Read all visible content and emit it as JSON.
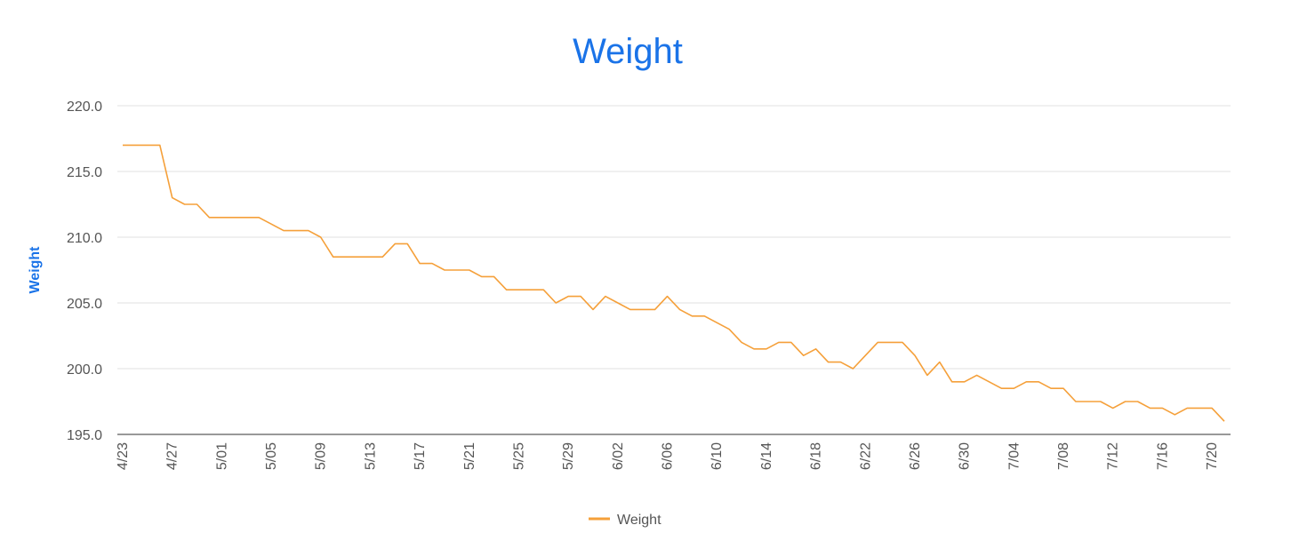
{
  "chart_data": {
    "type": "line",
    "title": "Weight",
    "ylabel": "Weight",
    "xlabel": "",
    "ylim": [
      195,
      220
    ],
    "yticks": [
      "195.0",
      "200.0",
      "205.0",
      "210.0",
      "215.0",
      "220.0"
    ],
    "xticks": [
      "4/23",
      "4/27",
      "5/01",
      "5/05",
      "5/09",
      "5/13",
      "5/17",
      "5/21",
      "5/25",
      "5/29",
      "6/02",
      "6/06",
      "6/10",
      "6/14",
      "6/18",
      "6/22",
      "6/26",
      "6/30",
      "7/04",
      "7/08",
      "7/12",
      "7/16",
      "7/20"
    ],
    "grid": true,
    "legend_position": "bottom",
    "color": "#f5a03a",
    "x": [
      "4/23",
      "4/24",
      "4/25",
      "4/26",
      "4/27",
      "4/28",
      "4/29",
      "4/30",
      "5/01",
      "5/02",
      "5/03",
      "5/04",
      "5/05",
      "5/06",
      "5/07",
      "5/08",
      "5/09",
      "5/10",
      "5/11",
      "5/12",
      "5/13",
      "5/14",
      "5/15",
      "5/16",
      "5/17",
      "5/18",
      "5/19",
      "5/20",
      "5/21",
      "5/22",
      "5/23",
      "5/24",
      "5/25",
      "5/26",
      "5/27",
      "5/28",
      "5/29",
      "5/30",
      "5/31",
      "6/01",
      "6/02",
      "6/03",
      "6/04",
      "6/05",
      "6/06",
      "6/07",
      "6/08",
      "6/09",
      "6/10",
      "6/11",
      "6/12",
      "6/13",
      "6/14",
      "6/15",
      "6/16",
      "6/17",
      "6/18",
      "6/19",
      "6/20",
      "6/21",
      "6/22",
      "6/23",
      "6/24",
      "6/25",
      "6/26",
      "6/27",
      "6/28",
      "6/29",
      "6/30",
      "7/01",
      "7/02",
      "7/03",
      "7/04",
      "7/05",
      "7/06",
      "7/07",
      "7/08",
      "7/09",
      "7/10",
      "7/11",
      "7/12",
      "7/13",
      "7/14",
      "7/15",
      "7/16",
      "7/17",
      "7/18",
      "7/19",
      "7/20",
      "7/21"
    ],
    "series": [
      {
        "name": "Weight",
        "values": [
          217,
          217,
          217,
          217,
          213,
          212.5,
          212.5,
          211.5,
          211.5,
          211.5,
          211.5,
          211.5,
          211,
          210.5,
          210.5,
          210.5,
          210,
          208.5,
          208.5,
          208.5,
          208.5,
          208.5,
          209.5,
          209.5,
          208,
          208,
          207.5,
          207.5,
          207.5,
          207,
          207,
          206,
          206,
          206,
          206,
          205,
          205.5,
          205.5,
          204.5,
          205.5,
          205,
          204.5,
          204.5,
          204.5,
          205.5,
          204.5,
          204,
          204,
          203.5,
          203,
          202,
          201.5,
          201.5,
          202,
          202,
          201,
          201.5,
          200.5,
          200.5,
          200,
          201,
          202,
          202,
          202,
          201,
          199.5,
          200.5,
          199,
          199,
          199.5,
          199,
          198.5,
          198.5,
          199,
          199,
          198.5,
          198.5,
          197.5,
          197.5,
          197.5,
          197,
          197.5,
          197.5,
          197,
          197,
          196.5,
          197,
          197,
          197,
          196
        ]
      }
    ]
  }
}
